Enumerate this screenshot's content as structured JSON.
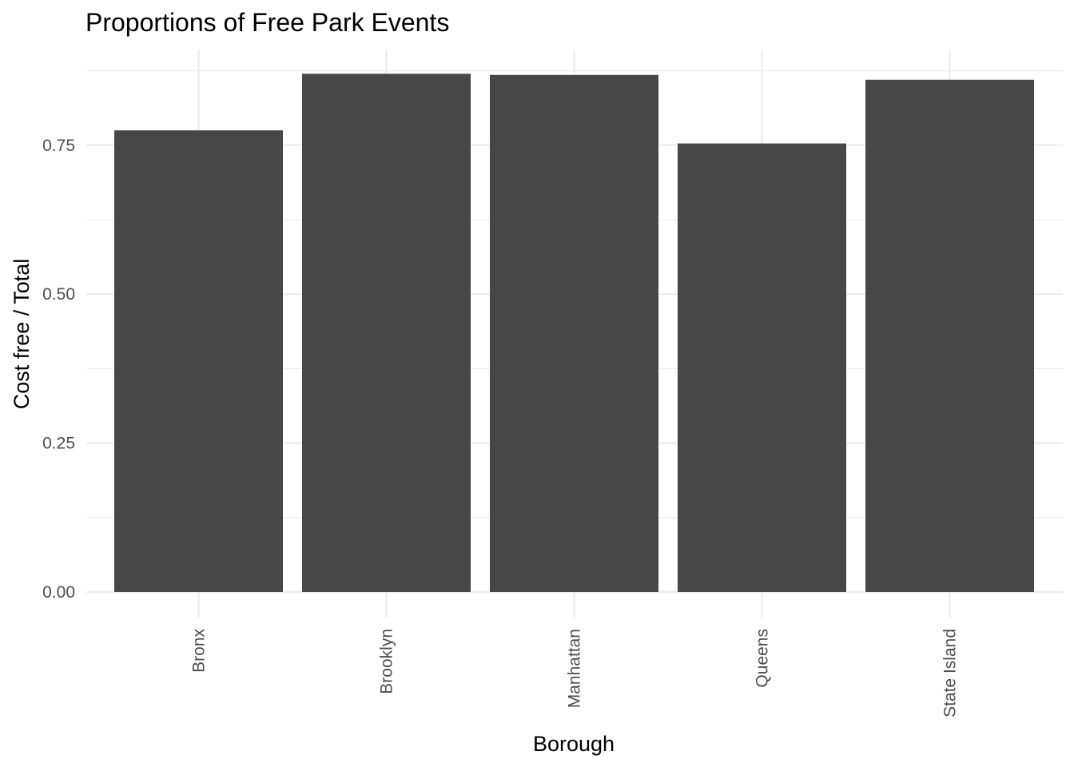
{
  "chart_data": {
    "type": "bar",
    "title": "Proportions of Free Park Events",
    "xlabel": "Borough",
    "ylabel": "Cost free / Total",
    "categories": [
      "Bronx",
      "Brooklyn",
      "Manhattan",
      "Queens",
      "State Island"
    ],
    "values": [
      0.775,
      0.87,
      0.868,
      0.753,
      0.86
    ],
    "ylim": [
      0,
      0.905
    ],
    "yticks": [
      0.0,
      0.25,
      0.5,
      0.75
    ],
    "ytick_labels": [
      "0.00",
      "0.25",
      "0.50",
      "0.75"
    ],
    "grid": true,
    "bar_color": "#474747",
    "legend": "none"
  }
}
